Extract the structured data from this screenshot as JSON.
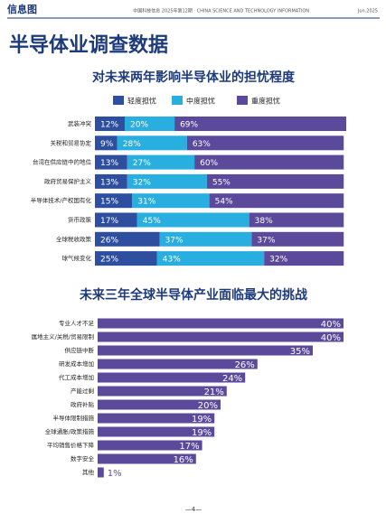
{
  "header": {
    "section": "信息图",
    "journal": "中国科技信息 2025年第12期 · CHINA SCIENCE AND TECHNOLOGY INFORMATION",
    "date": "Jun.2025",
    "title": "半导体业调查数据",
    "page": "—4—"
  },
  "chart_data": [
    {
      "type": "stacked-bar",
      "orientation": "horizontal",
      "title": "对未来两年影响半导体业的担忧程度",
      "categories": [
        "武装冲突",
        "关税和贸易协定",
        "台湾在供应链中的地位",
        "政府贸易保护主义",
        "半导体技术/产权国有化",
        "货币政策",
        "全球税收政策",
        "球气候变化"
      ],
      "series": [
        {
          "name": "轻度担忧",
          "color": "#2e4fa0",
          "values": [
            12,
            9,
            13,
            13,
            15,
            17,
            26,
            25
          ],
          "value_labels": [
            "12%",
            "9%",
            "13%",
            "13%",
            "15%",
            "17%",
            "26%",
            "25%"
          ]
        },
        {
          "name": "中度担忧",
          "color": "#29aee0",
          "values": [
            20,
            28,
            27,
            32,
            31,
            45,
            37,
            43
          ],
          "value_labels": [
            "20%",
            "28%",
            "27%",
            "32%",
            "31%",
            "45%",
            "37%",
            "43%"
          ]
        },
        {
          "name": "重度担忧",
          "color": "#5b4a9c",
          "values": [
            69,
            63,
            60,
            55,
            54,
            38,
            37,
            32
          ],
          "value_labels": [
            "69%",
            "63%",
            "60%",
            "55%",
            "54%",
            "38%",
            "37%",
            "32%"
          ]
        }
      ]
    },
    {
      "type": "bar",
      "orientation": "horizontal",
      "title": "未来三年全球半导体产业面临最大的挑战",
      "color": "#5b4a9c",
      "categories": [
        "专业人才不足",
        "属地主义/关税/贸易限制",
        "供应链中断",
        "研发成本增加",
        "代工成本增加",
        "产能过剩",
        "政府补贴",
        "半导体限制措施",
        "全球通胀/政策措施",
        "平均销售价格下降",
        "数字安全",
        "其他"
      ],
      "values": [
        40,
        40,
        35,
        26,
        24,
        21,
        20,
        19,
        19,
        17,
        16,
        1
      ],
      "value_labels": [
        "40%",
        "40%",
        "35%",
        "26%",
        "24%",
        "21%",
        "20%",
        "19%",
        "19%",
        "17%",
        "16%",
        "1%"
      ]
    }
  ]
}
